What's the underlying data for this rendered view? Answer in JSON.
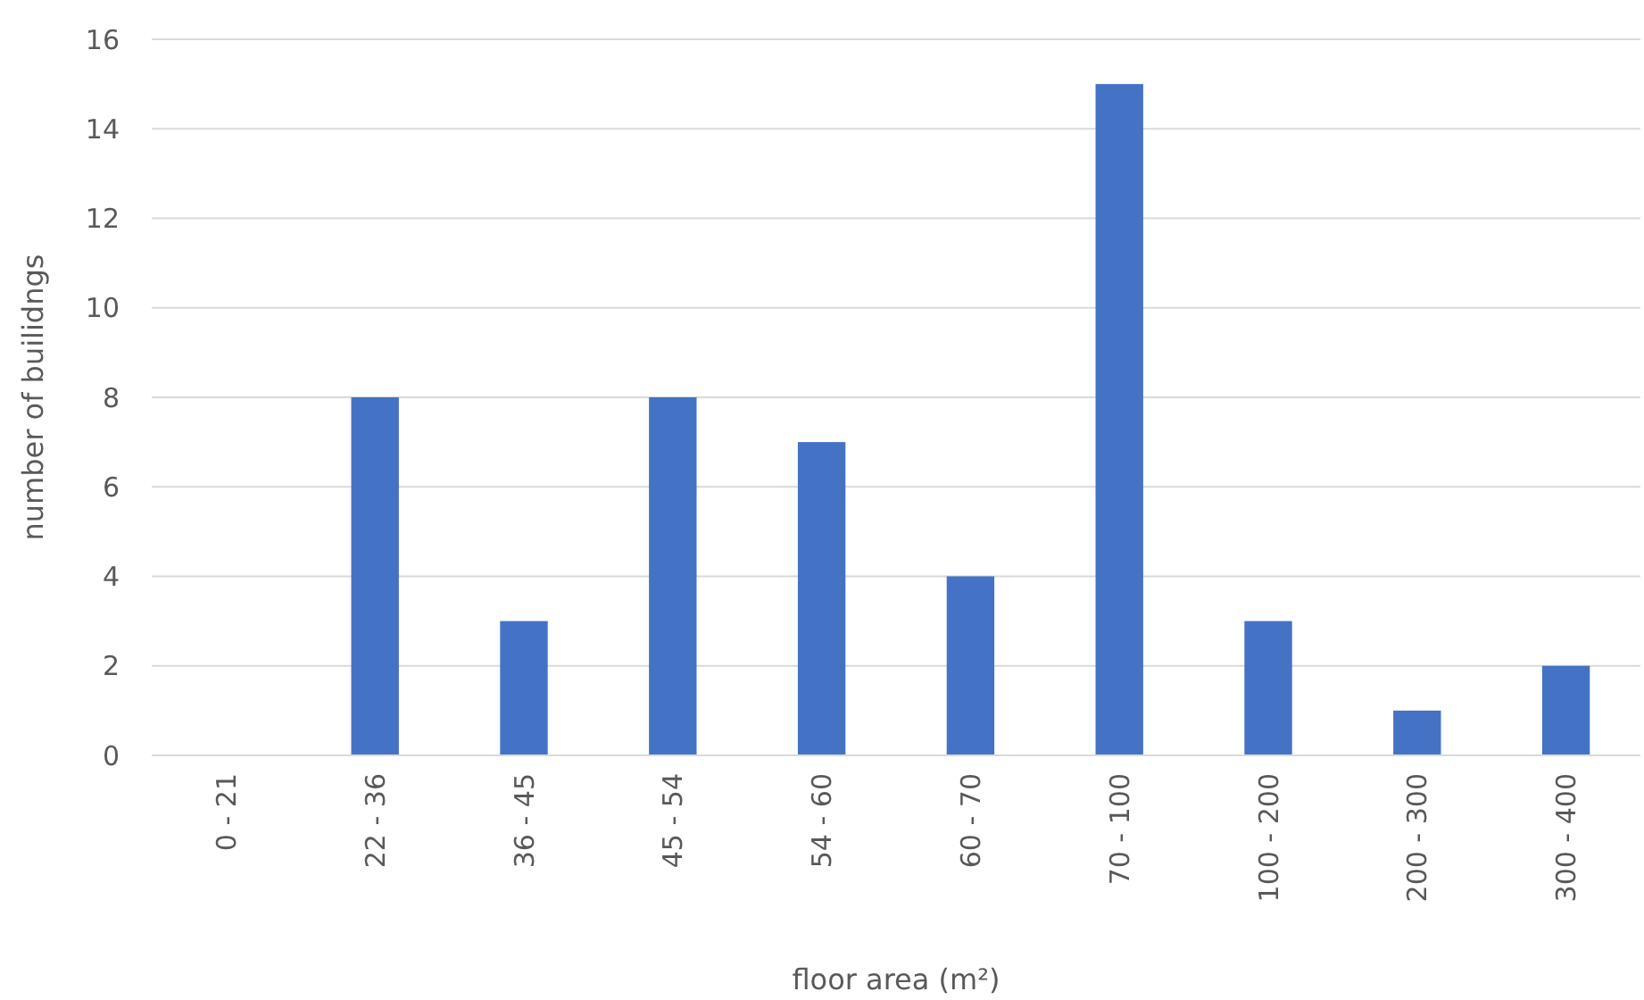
{
  "chart_data": {
    "type": "bar",
    "xlabel": "floor area (m²)",
    "ylabel": "number of builidngs",
    "categories": [
      "0 - 21",
      "22 - 36",
      "36 - 45",
      "45 - 54",
      "54 - 60",
      "60 - 70",
      "70 - 100",
      "100 - 200",
      "200 - 300",
      "300 - 400"
    ],
    "values": [
      0,
      8,
      3,
      8,
      7,
      4,
      15,
      3,
      1,
      2
    ],
    "color": "#4472c4",
    "ylim": [
      0,
      16
    ],
    "yticks": [
      0,
      2,
      4,
      6,
      8,
      10,
      12,
      14,
      16
    ],
    "grid": "y"
  }
}
